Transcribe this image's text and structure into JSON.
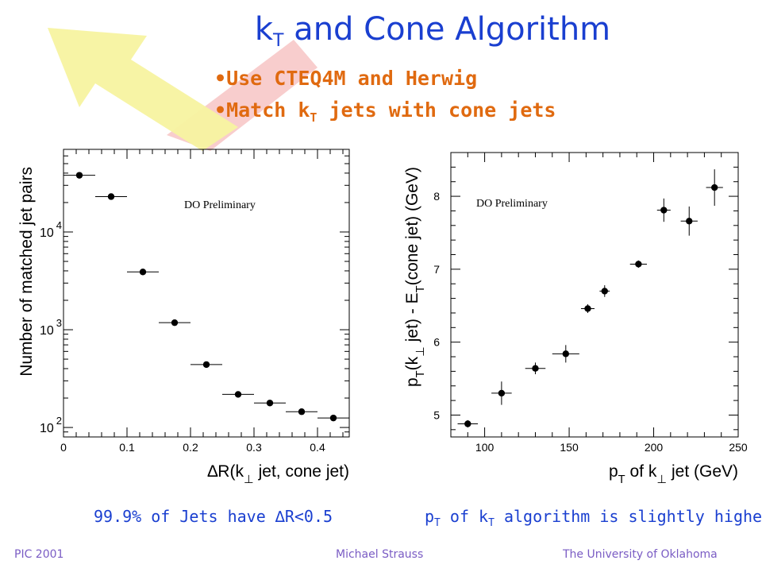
{
  "slide": {
    "title_main": "k",
    "title_sub": "T",
    "title_rest": " and Cone Algorithm",
    "bullets": [
      {
        "marker": "•",
        "text": "Use CTEQ4M and Herwig",
        "sub": "",
        "rest": ""
      },
      {
        "marker": "•",
        "text": "Match k",
        "sub": "T",
        "rest": " jets with cone jets"
      }
    ],
    "caption_left": "99.9% of Jets have ∆R<0.5",
    "caption_right_a": "p",
    "caption_right_sub1": "T",
    "caption_right_b": " of k",
    "caption_right_sub2": "T",
    "caption_right_c": " algorithm is slightly higher",
    "footer_left": "PIC 2001",
    "footer_center": "Michael Strauss",
    "footer_right": "The University of Oklahoma"
  },
  "colors": {
    "title": "#1a3fd0",
    "bullets": "#e06a10",
    "footer": "#7a5cc4",
    "arrow": "#f7f3a0",
    "arrow_shaft": "#f7c8c8"
  },
  "chart_data": [
    {
      "type": "scatter",
      "title": "",
      "annotation": "DO Preliminary",
      "xlabel": "∆R(k⊥ jet, cone jet)",
      "ylabel": "Number of matched jet pairs",
      "xlim": [
        0,
        0.45
      ],
      "ylim": [
        80,
        70000
      ],
      "yscale": "log",
      "xticks": [
        0,
        0.1,
        0.2,
        0.3,
        0.4
      ],
      "xtick_labels": [
        "0",
        "0.1",
        "0.2",
        "0.3",
        "0.4"
      ],
      "yticks": [
        100,
        1000,
        10000
      ],
      "ytick_base": "10",
      "ytick_exps": [
        "2",
        "3",
        "4"
      ],
      "series": [
        {
          "x": [
            0.025,
            0.075,
            0.125,
            0.175,
            0.225,
            0.275,
            0.325,
            0.375,
            0.425
          ],
          "y": [
            38000,
            23000,
            3900,
            1180,
            440,
            218,
            178,
            145,
            125
          ],
          "xerr": [
            0.025,
            0.025,
            0.025,
            0.025,
            0.025,
            0.025,
            0.025,
            0.025,
            0.025
          ]
        }
      ]
    },
    {
      "type": "scatter",
      "title": "",
      "annotation": "DO Preliminary",
      "xlabel": "pT of k⊥ jet (GeV)",
      "ylabel": "pT(k⊥ jet) - ET(cone jet) (GeV)",
      "xlim": [
        80,
        250
      ],
      "ylim": [
        4.7,
        8.6
      ],
      "xticks": [
        100,
        150,
        200,
        250
      ],
      "xtick_labels": [
        "100",
        "150",
        "200",
        "250"
      ],
      "yticks": [
        5,
        6,
        7,
        8
      ],
      "ytick_labels": [
        "5",
        "6",
        "7",
        "8"
      ],
      "series": [
        {
          "x": [
            90,
            110,
            130,
            148,
            161,
            171,
            191,
            206,
            221,
            236
          ],
          "y": [
            4.88,
            5.3,
            5.64,
            5.84,
            6.46,
            6.7,
            7.07,
            7.81,
            7.66,
            8.12
          ],
          "xerr": [
            6,
            6,
            6,
            8,
            4,
            3,
            5,
            4,
            5,
            5
          ],
          "yerr": [
            0.05,
            0.16,
            0.08,
            0.12,
            0.06,
            0.08,
            0.05,
            0.16,
            0.2,
            0.25
          ]
        }
      ]
    }
  ]
}
